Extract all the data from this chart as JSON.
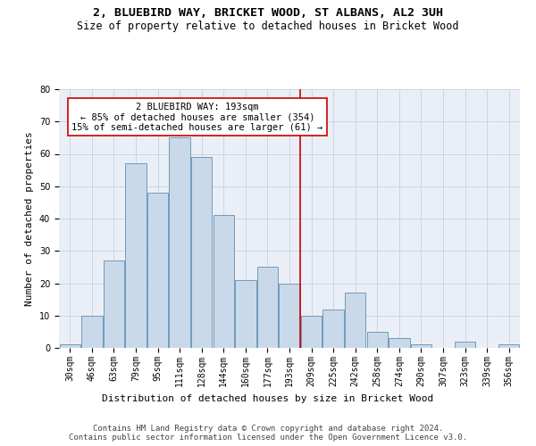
{
  "title1": "2, BLUEBIRD WAY, BRICKET WOOD, ST ALBANS, AL2 3UH",
  "title2": "Size of property relative to detached houses in Bricket Wood",
  "xlabel": "Distribution of detached houses by size in Bricket Wood",
  "ylabel": "Number of detached properties",
  "footer1": "Contains HM Land Registry data © Crown copyright and database right 2024.",
  "footer2": "Contains public sector information licensed under the Open Government Licence v3.0.",
  "categories": [
    "30sqm",
    "46sqm",
    "63sqm",
    "79sqm",
    "95sqm",
    "111sqm",
    "128sqm",
    "144sqm",
    "160sqm",
    "177sqm",
    "193sqm",
    "209sqm",
    "225sqm",
    "242sqm",
    "258sqm",
    "274sqm",
    "290sqm",
    "307sqm",
    "323sqm",
    "339sqm",
    "356sqm"
  ],
  "values": [
    1,
    10,
    27,
    57,
    48,
    65,
    59,
    41,
    21,
    25,
    20,
    10,
    12,
    17,
    5,
    3,
    1,
    0,
    2,
    0,
    1
  ],
  "bar_color": "#c9d9ea",
  "bar_edge_color": "#6090b0",
  "vline_idx": 10,
  "vline_color": "#cc0000",
  "annotation_line1": "2 BLUEBIRD WAY: 193sqm",
  "annotation_line2": "← 85% of detached houses are smaller (354)",
  "annotation_line3": "15% of semi-detached houses are larger (61) →",
  "annotation_box_color": "#ffffff",
  "annotation_box_edge": "#cc0000",
  "ylim": [
    0,
    80
  ],
  "yticks": [
    0,
    10,
    20,
    30,
    40,
    50,
    60,
    70,
    80
  ],
  "grid_color": "#c8d0dc",
  "bg_color": "#eaeff7",
  "title_fontsize": 9.5,
  "subtitle_fontsize": 8.5,
  "axis_label_fontsize": 8,
  "tick_fontsize": 7,
  "footer_fontsize": 6.5,
  "annotation_fontsize": 7.5
}
